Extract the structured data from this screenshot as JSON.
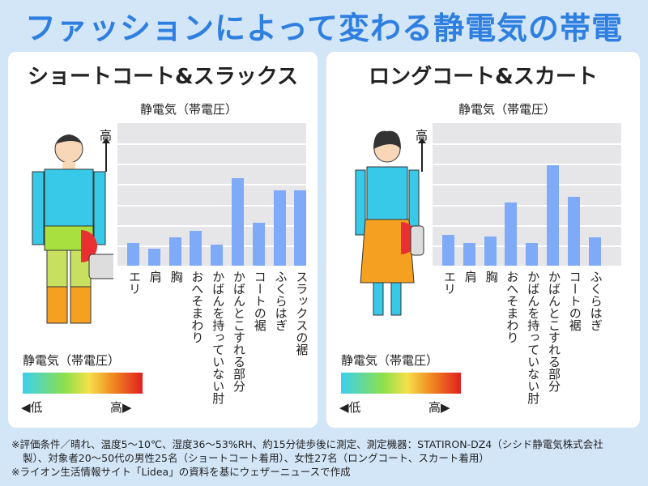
{
  "title": "ファッションによって変わる静電気の帯電",
  "left": {
    "heading": "ショートコート&スラックス",
    "chart_title": "静電気（帯電圧）",
    "high": "高"
  },
  "right": {
    "heading": "ロングコート&スカート",
    "chart_title": "静電気（帯電圧）",
    "high": "高"
  },
  "legend": {
    "title": "静電気（帯電圧）",
    "low": "◀低",
    "high": "高▶",
    "colors": [
      "#3ad0f0",
      "#8be04a",
      "#f5e04a",
      "#f08a20",
      "#e02020"
    ]
  },
  "notes": [
    "※評価条件／晴れ、温度5〜10℃、湿度36〜53%RH、約15分徒歩後に測定、測定機器：STATIRON-DZ4（シシド静電気株式会社",
    "製）、対象者20〜50代の男性25名（ショートコート着用）、女性27名（ロングコート、スカート着用）",
    "※ライオン生活情報サイト「Lidea」の資料を基にウェザーニュースで作成"
  ],
  "chart_data": [
    {
      "type": "bar",
      "title": "静電気（帯電圧）",
      "ylabel": "高",
      "ylim": [
        0,
        7
      ],
      "grid": true,
      "units": "relative (no numeric scale shown)",
      "categories": [
        "エリ",
        "肩",
        "胸",
        "おへそまわり",
        "かばんを持っていない肘",
        "かばんとこすれる部分",
        "コートの裾",
        "ふくらはぎ",
        "スラックスの裾"
      ],
      "values": [
        1.1,
        0.85,
        1.4,
        1.7,
        1.05,
        4.3,
        2.1,
        3.7,
        3.7
      ]
    },
    {
      "type": "bar",
      "title": "静電気（帯電圧）",
      "ylabel": "高",
      "ylim": [
        0,
        7
      ],
      "grid": true,
      "units": "relative (no numeric scale shown)",
      "categories": [
        "エリ",
        "肩",
        "胸",
        "おへそまわり",
        "かばんを持っていない肘",
        "かばんとこすれる部分",
        "コートの裾",
        "ふくらはぎ"
      ],
      "values": [
        1.5,
        1.1,
        1.45,
        3.1,
        1.1,
        4.95,
        3.4,
        1.4
      ]
    }
  ]
}
